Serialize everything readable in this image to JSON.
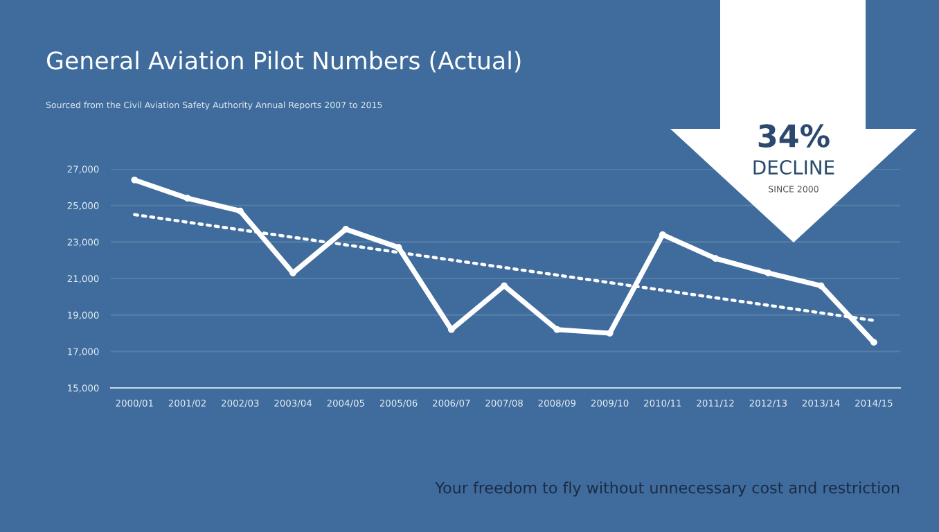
{
  "chart_data": {
    "type": "line",
    "title": "General Aviation Pilot Numbers (Actual)",
    "subtitle": "Sourced from the Civil Aviation Safety Authority Annual Reports 2007 to 2015",
    "categories": [
      "2000/01",
      "2001/02",
      "2002/03",
      "2003/04",
      "2004/05",
      "2005/06",
      "2006/07",
      "2007/08",
      "2008/09",
      "2009/10",
      "2010/11",
      "2011/12",
      "2012/13",
      "2013/14",
      "2014/15"
    ],
    "series": [
      {
        "color": "#ffffff",
        "line_style": "solid",
        "marker": "circle",
        "values": [
          26400,
          25400,
          24700,
          21300,
          23700,
          22700,
          18200,
          20600,
          18200,
          18000,
          23400,
          22100,
          21300,
          20600,
          17500
        ]
      },
      {
        "color": "#ffffff",
        "line_style": "dotted",
        "marker": "none",
        "x": [
          "2000/01",
          "2014/15"
        ],
        "values": [
          24500,
          18700
        ]
      }
    ],
    "ylim": [
      15000,
      27000
    ],
    "yticks": [
      {
        "value": 15000,
        "label": "15,000"
      },
      {
        "value": 17000,
        "label": "17,000"
      },
      {
        "value": 19000,
        "label": "19,000"
      },
      {
        "value": 21000,
        "label": "21,000"
      },
      {
        "value": 23000,
        "label": "23,000"
      },
      {
        "value": 25000,
        "label": "25,000"
      },
      {
        "value": 27000,
        "label": "27,000"
      }
    ],
    "grid": "y",
    "legend": false,
    "annotations": [
      "34%",
      "DECLINE",
      "SINCE 2000",
      "Your freedom to fly without unnecessary cost and restriction"
    ]
  }
}
